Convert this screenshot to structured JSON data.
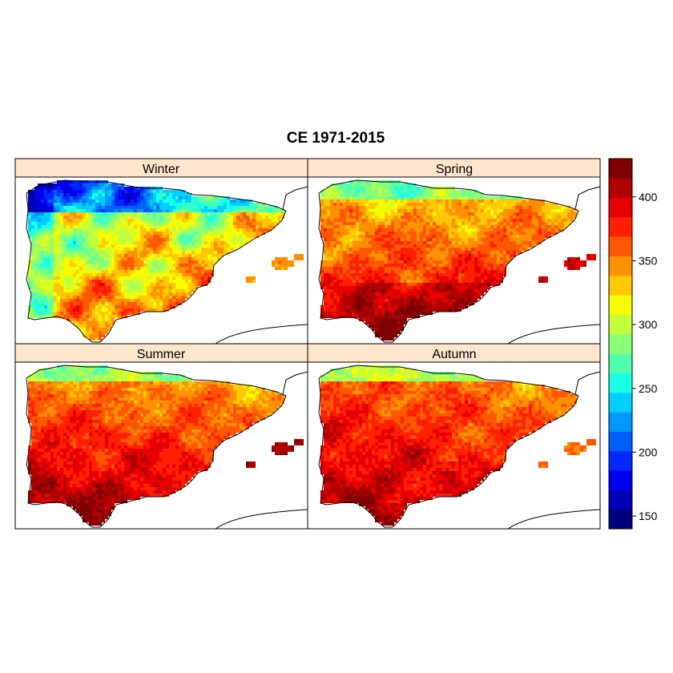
{
  "title": "CE 1971-2015",
  "panels": [
    {
      "label": "Winter"
    },
    {
      "label": "Spring"
    },
    {
      "label": "Summer"
    },
    {
      "label": "Autumn"
    }
  ],
  "colorbar": {
    "ticks": [
      150,
      200,
      250,
      300,
      350,
      400
    ],
    "range": [
      140,
      430
    ],
    "colors": [
      "#00007f",
      "#0000b8",
      "#0000f0",
      "#0028ff",
      "#0060ff",
      "#0098ff",
      "#00d0ff",
      "#18ffe6",
      "#50ffae",
      "#88ff76",
      "#c0ff3e",
      "#f8fc00",
      "#ffc800",
      "#ff9000",
      "#ff5800",
      "#ff2000",
      "#e80000",
      "#b00000",
      "#7f0000"
    ]
  },
  "colors": {
    "strip": "#ffe5cc",
    "frame": "#000000",
    "background": "#ffffff"
  }
}
